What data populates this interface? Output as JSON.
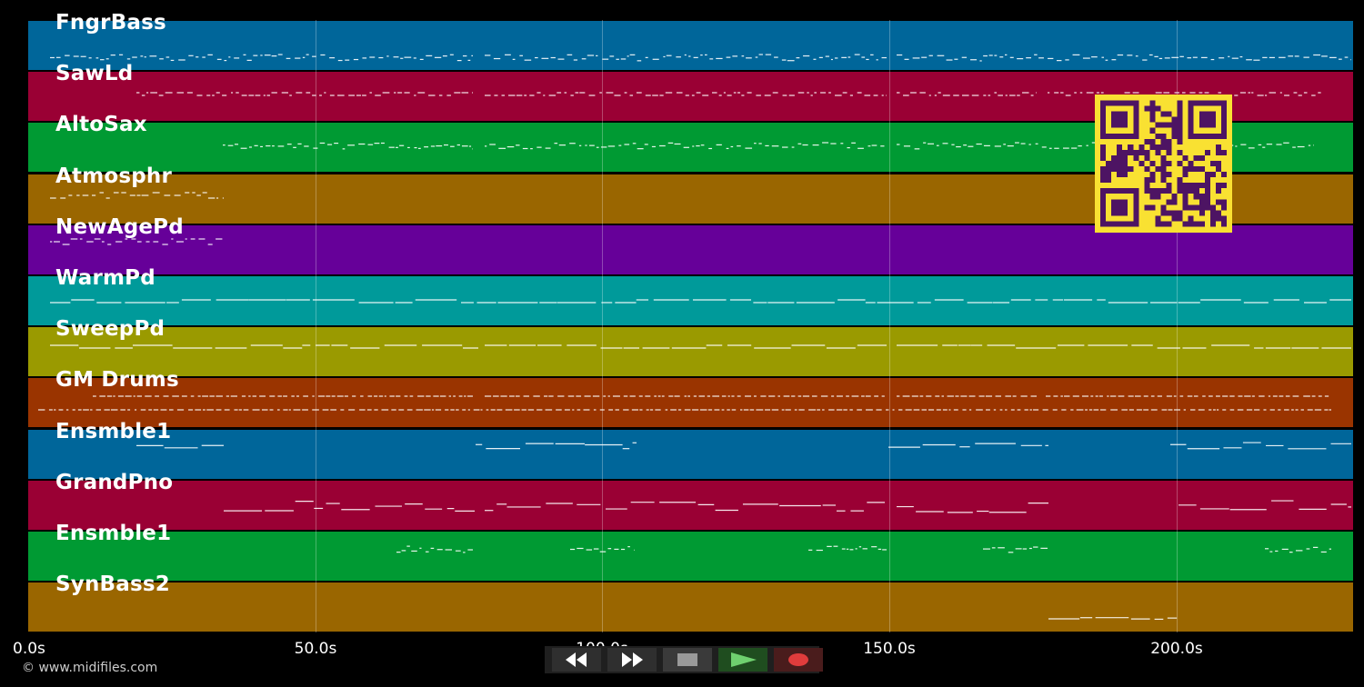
{
  "tracks": [
    {
      "name": "FngrBass",
      "color": "#00669a"
    },
    {
      "name": "SawLd",
      "color": "#9a0034"
    },
    {
      "name": "AltoSax",
      "color": "#009a33"
    },
    {
      "name": "Atmosphr",
      "color": "#9a6600"
    },
    {
      "name": "NewAgePd",
      "color": "#660099"
    },
    {
      "name": "WarmPd",
      "color": "#009a9a"
    },
    {
      "name": "SweepPd",
      "color": "#9a9a00"
    },
    {
      "name": "GM Drums",
      "color": "#9a3400"
    },
    {
      "name": "Ensmble1",
      "color": "#00669a"
    },
    {
      "name": "GrandPno",
      "color": "#9a0034"
    },
    {
      "name": "Ensmble1",
      "color": "#009a33"
    },
    {
      "name": "SynBass2",
      "color": "#9a6600"
    }
  ],
  "timeline": {
    "ticks": [
      "0.0s",
      "50.0s",
      "100.0s",
      "150.0s",
      "200.0s"
    ],
    "duration_s": 230.5,
    "tick_values_s": [
      0,
      50,
      100,
      150,
      200
    ]
  },
  "transport": {
    "rewind_icon": "rewind-icon",
    "fast_forward_icon": "fast-forward-icon",
    "stop_icon": "stop-icon",
    "play_icon": "play-icon",
    "record_icon": "record-icon",
    "colors": {
      "play": "#6fd06f",
      "record": "#e03c3c",
      "stop": "#999999"
    }
  },
  "footer": {
    "copyright": "© www.midifiles.com"
  },
  "qr": {
    "icon": "qr-code-icon",
    "fg": "#4d1463",
    "bg": "#f9e132"
  }
}
